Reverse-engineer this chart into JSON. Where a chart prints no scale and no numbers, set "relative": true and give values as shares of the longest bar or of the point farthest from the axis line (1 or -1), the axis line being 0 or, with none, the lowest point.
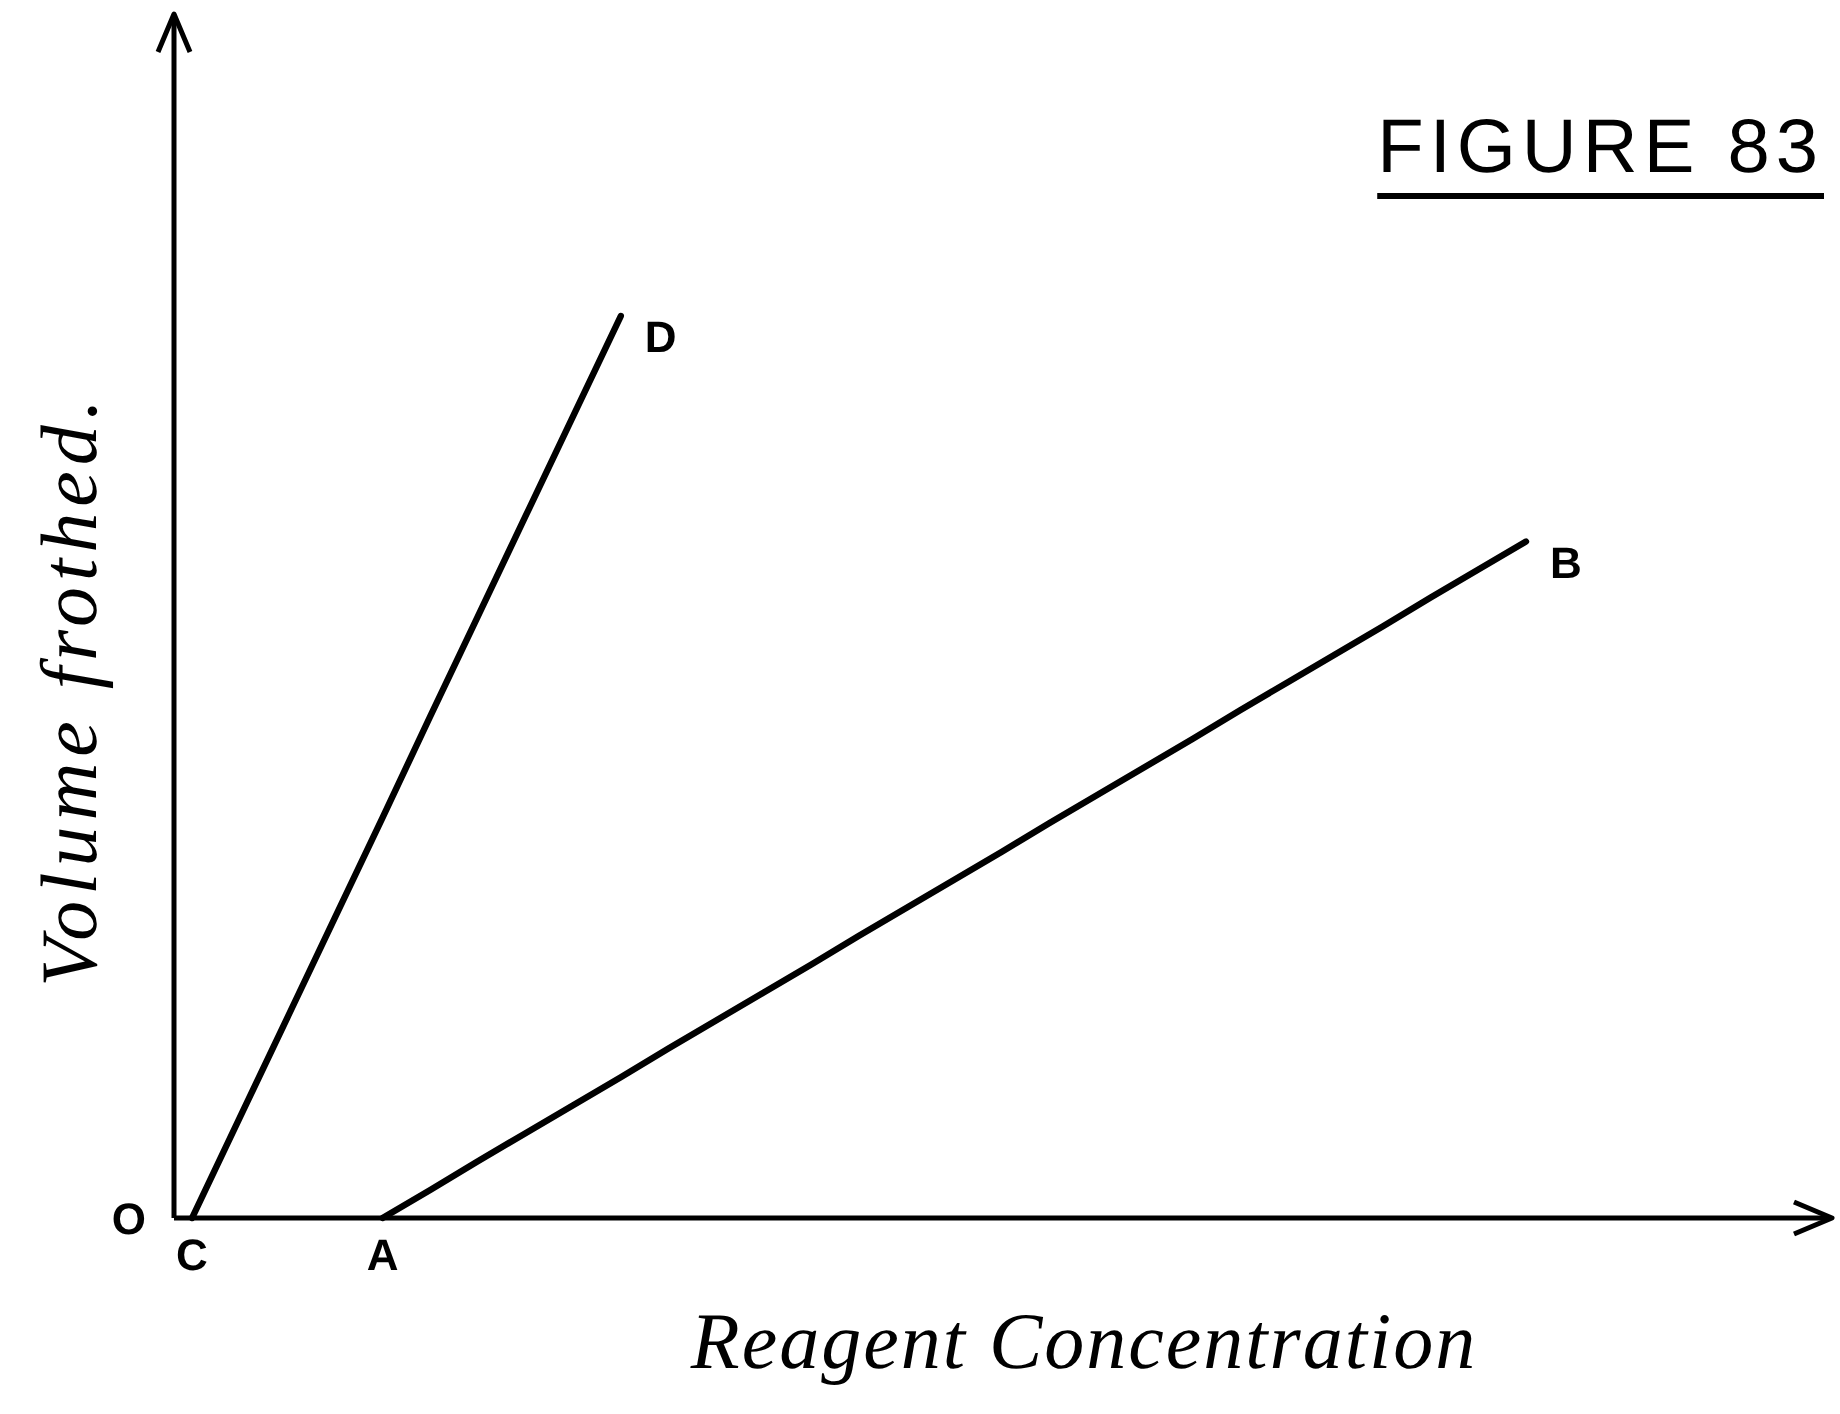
{
  "chart_data": {
    "type": "line",
    "title": "FIGURE 83",
    "xlabel": "Reagent Concentration",
    "ylabel": "Volume frothed.",
    "relative": true,
    "categories": [
      "C",
      null,
      null,
      null,
      "A",
      null,
      null,
      null,
      null,
      null,
      null,
      null,
      null,
      null,
      null,
      null,
      null,
      null,
      null,
      null,
      null,
      null,
      null,
      null,
      null,
      null,
      null,
      null,
      null
    ],
    "series": [
      {
        "name": "D",
        "color": "#000000",
        "values": [
          0,
          0.111,
          0.222,
          0.333,
          0.444,
          0.556,
          0.667,
          0.778,
          0.889,
          1,
          null,
          null,
          null,
          null,
          null,
          null,
          null,
          null,
          null,
          null,
          null,
          null,
          null,
          null,
          null,
          null,
          null,
          null,
          null
        ]
      },
      {
        "name": "B",
        "color": "#000000",
        "values": [
          null,
          null,
          null,
          null,
          0,
          0.031,
          0.063,
          0.094,
          0.125,
          0.156,
          0.188,
          0.219,
          0.25,
          0.281,
          0.313,
          0.344,
          0.375,
          0.406,
          0.438,
          0.469,
          0.5,
          0.531,
          0.563,
          0.594,
          0.625,
          0.656,
          0.688,
          0.719,
          0.75
        ]
      }
    ],
    "annotations": [
      "O"
    ]
  }
}
